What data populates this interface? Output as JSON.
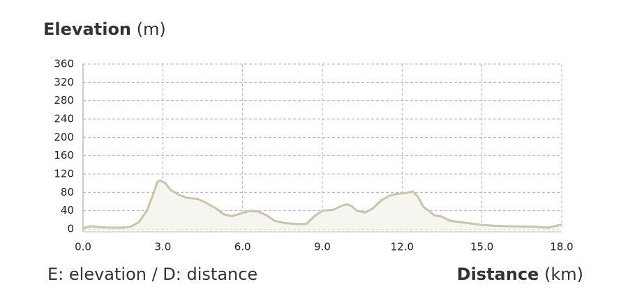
{
  "chart_data": {
    "type": "area",
    "y_label": "Elevation",
    "y_unit": "(m)",
    "x_label": "Distance",
    "x_unit": "(km)",
    "note": "E: elevation / D: distance",
    "x": [
      0.0,
      0.3,
      0.6,
      1.0,
      1.5,
      1.8,
      2.1,
      2.4,
      2.6,
      2.8,
      2.9,
      3.1,
      3.3,
      3.6,
      3.9,
      4.3,
      4.6,
      5.0,
      5.3,
      5.6,
      6.0,
      6.3,
      6.6,
      6.9,
      7.2,
      7.6,
      8.0,
      8.4,
      8.7,
      9.0,
      9.4,
      9.7,
      9.9,
      10.1,
      10.3,
      10.6,
      10.9,
      11.2,
      11.5,
      11.8,
      12.1,
      12.4,
      12.6,
      12.8,
      13.0,
      13.2,
      13.5,
      13.8,
      14.2,
      14.6,
      15.0,
      15.5,
      16.0,
      17.0,
      17.5,
      18.0
    ],
    "values": [
      2,
      6,
      4,
      3,
      3,
      5,
      15,
      40,
      70,
      103,
      106,
      100,
      85,
      75,
      68,
      66,
      58,
      45,
      32,
      28,
      35,
      40,
      38,
      30,
      18,
      13,
      11,
      11,
      28,
      40,
      42,
      50,
      54,
      50,
      40,
      36,
      45,
      62,
      72,
      77,
      78,
      82,
      70,
      48,
      40,
      30,
      27,
      18,
      15,
      12,
      9,
      7,
      6,
      5,
      3,
      10
    ],
    "color": "#c9c2ad",
    "fill": "#f7f5f0",
    "xlim": [
      0,
      18
    ],
    "ylim": [
      0,
      360
    ],
    "xticks": [
      {
        "value": 0,
        "label": "0.0"
      },
      {
        "value": 3,
        "label": "3.0"
      },
      {
        "value": 6,
        "label": "6.0"
      },
      {
        "value": 9,
        "label": "9.0"
      },
      {
        "value": 12,
        "label": "12.0"
      },
      {
        "value": 15,
        "label": "15.0"
      },
      {
        "value": 18,
        "label": "18.0"
      }
    ],
    "yticks": [
      0,
      40,
      80,
      120,
      160,
      200,
      240,
      280,
      320,
      360
    ],
    "grid": true
  }
}
